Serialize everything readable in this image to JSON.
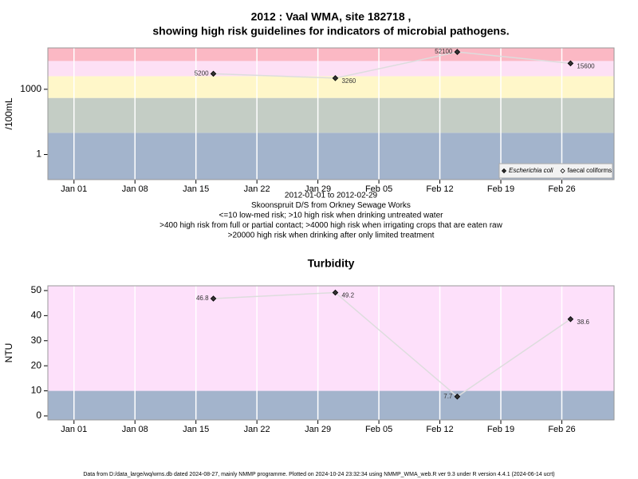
{
  "chart_data": [
    {
      "type": "line",
      "title": [
        "2012 : Vaal WMA, site 182718 ,",
        "showing high risk guidelines for indicators of microbial pathogens."
      ],
      "notes": [
        "2012-01-01 to 2012-02-29",
        "Skoonspruit D/S from Orkney Sewage Works",
        "<=10 low-med risk; >10 high risk when drinking untreated water",
        ">400 high risk from full or partial contact; >4000 high risk when irrigating crops that are eaten raw",
        ">20000 high risk when drinking after only limited treatment"
      ],
      "y_label": "/100mL",
      "log_scale": true,
      "x": [
        "2012-01-17",
        "2012-01-31",
        "2012-02-14",
        "2012-02-27"
      ],
      "series": [
        {
          "name": "Escherichia coli",
          "color": "#333333",
          "values": [
            5200,
            3260,
            52100,
            15600
          ]
        },
        {
          "name": "faecal coliforms",
          "color": "#ffffff",
          "values": [
            null,
            null,
            null,
            null
          ]
        }
      ],
      "line_color": "#dddddd",
      "bands": [
        {
          "from": 0.07,
          "to": 10,
          "color": "#a3b4cc"
        },
        {
          "from": 10,
          "to": 400,
          "color": "#c4cdc5"
        },
        {
          "from": 400,
          "to": 4000,
          "color": "#fff7c9"
        },
        {
          "from": 4000,
          "to": 20000,
          "color": "#fde0f5"
        },
        {
          "from": 20000,
          "to": 80000,
          "color": "#fbb8c4"
        }
      ],
      "xlim": [
        "2011-12-29",
        "2012-03-03"
      ],
      "xticks": [
        {
          "value": "2012-01-01",
          "label": "Jan 01"
        },
        {
          "value": "2012-01-08",
          "label": "Jan 08"
        },
        {
          "value": "2012-01-15",
          "label": "Jan 15"
        },
        {
          "value": "2012-01-22",
          "label": "Jan 22"
        },
        {
          "value": "2012-01-29",
          "label": "Jan 29"
        },
        {
          "value": "2012-02-05",
          "label": "Feb 05"
        },
        {
          "value": "2012-02-12",
          "label": "Feb 12"
        },
        {
          "value": "2012-02-19",
          "label": "Feb 19"
        },
        {
          "value": "2012-02-26",
          "label": "Feb 26"
        }
      ],
      "ylim": [
        0.07,
        80000
      ],
      "yticks": [
        1,
        1000
      ],
      "grid": true,
      "legend_position": "bottom-right"
    },
    {
      "type": "line",
      "title": [
        "Turbidity"
      ],
      "y_label": "NTU",
      "log_scale": false,
      "x": [
        "2012-01-17",
        "2012-01-31",
        "2012-02-14",
        "2012-02-27"
      ],
      "series": [
        {
          "name": "Turbidity",
          "color": "#333333",
          "values": [
            46.8,
            49.2,
            7.7,
            38.6
          ]
        }
      ],
      "line_color": "#dddddd",
      "bands": [
        {
          "from": -1.6,
          "to": 10,
          "color": "#a3b4cc"
        },
        {
          "from": 10,
          "to": 51.9,
          "color": "#fde0fa"
        }
      ],
      "xlim": [
        "2011-12-29",
        "2012-03-03"
      ],
      "xticks": [
        {
          "value": "2012-01-01",
          "label": "Jan 01"
        },
        {
          "value": "2012-01-08",
          "label": "Jan 08"
        },
        {
          "value": "2012-01-15",
          "label": "Jan 15"
        },
        {
          "value": "2012-01-22",
          "label": "Jan 22"
        },
        {
          "value": "2012-01-29",
          "label": "Jan 29"
        },
        {
          "value": "2012-02-05",
          "label": "Feb 05"
        },
        {
          "value": "2012-02-12",
          "label": "Feb 12"
        },
        {
          "value": "2012-02-19",
          "label": "Feb 19"
        },
        {
          "value": "2012-02-26",
          "label": "Feb 26"
        }
      ],
      "ylim": [
        -1.6,
        51.9
      ],
      "yticks": [
        0,
        10,
        20,
        30,
        40,
        50
      ],
      "grid": true
    }
  ],
  "footer": "Data from D:/data_large/wq/wms.db dated 2024-08-27, mainly NMMP programme. Plotted on 2024-10-24 23:32:34 using NMMP_WMA_web.R ver 9.3 under R version 4.4.1 (2024-06-14 ucrt)"
}
